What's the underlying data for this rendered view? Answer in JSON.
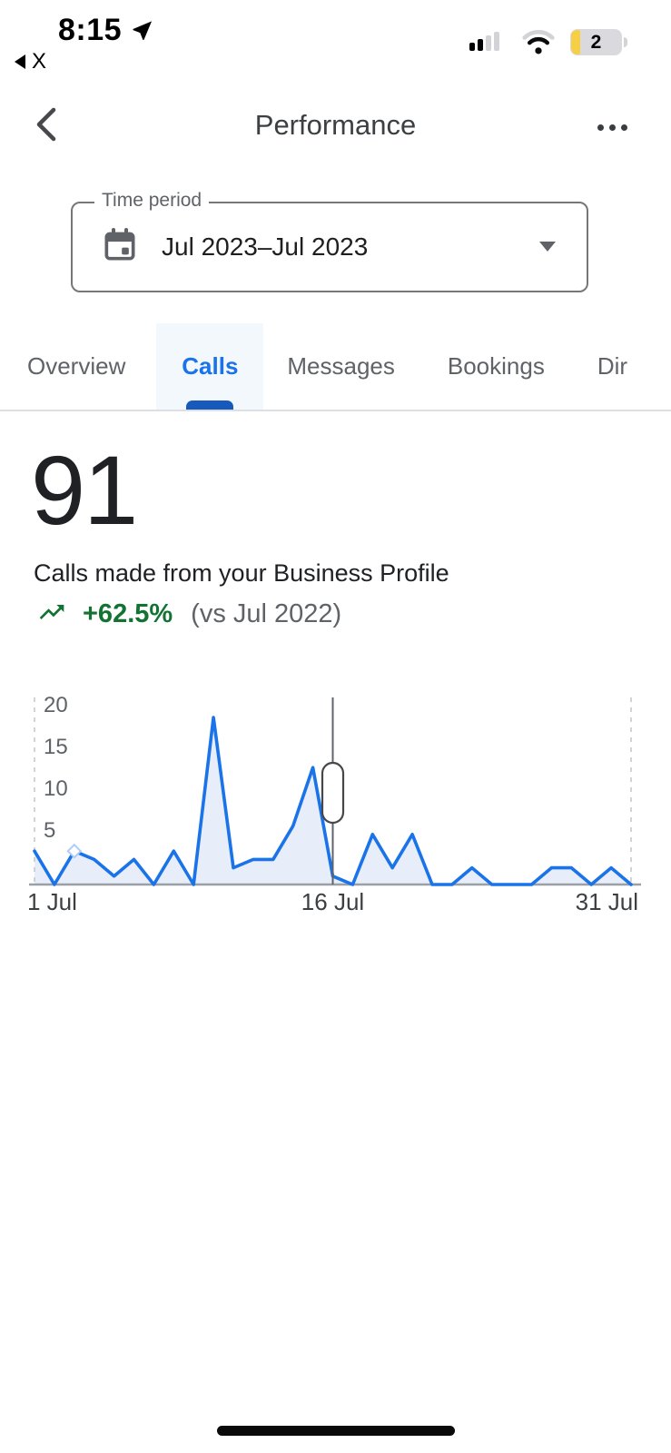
{
  "status_bar": {
    "time": "8:15",
    "previous_app": "X",
    "battery_percent": "2"
  },
  "header": {
    "title": "Performance"
  },
  "time_period": {
    "label": "Time period",
    "value": "Jul 2023–Jul 2023"
  },
  "tabs": [
    {
      "label": "Overview",
      "active": false
    },
    {
      "label": "Calls",
      "active": true
    },
    {
      "label": "Messages",
      "active": false
    },
    {
      "label": "Bookings",
      "active": false
    },
    {
      "label": "Dir",
      "active": false
    }
  ],
  "metric": {
    "value": "91",
    "description": "Calls made from your Business Profile",
    "delta": "+62.5%",
    "comparison": "(vs Jul 2022)"
  },
  "chart_data": {
    "type": "area",
    "title": "",
    "categories": [
      1,
      2,
      3,
      4,
      5,
      6,
      7,
      8,
      9,
      10,
      11,
      12,
      13,
      14,
      15,
      16,
      17,
      18,
      19,
      20,
      21,
      22,
      23,
      24,
      25,
      26,
      27,
      28,
      29,
      30,
      31
    ],
    "series": [
      {
        "name": "Calls",
        "values": [
          4,
          0,
          4,
          3,
          1,
          3,
          0,
          4,
          0,
          20,
          2,
          3,
          3,
          7,
          14,
          1,
          0,
          6,
          2,
          6,
          0,
          0,
          2,
          0,
          0,
          0,
          2,
          2,
          0,
          2,
          0
        ]
      }
    ],
    "total": 91,
    "ylim": [
      0,
      21
    ],
    "y_ticks": [
      5,
      10,
      15,
      20
    ],
    "x_tick_labels": [
      "1 Jul",
      "16 Jul",
      "31 Jul"
    ],
    "x_tick_indices": [
      0,
      15,
      30
    ],
    "cursor": {
      "index": 15,
      "label": "16 Jul"
    },
    "highlight_index": 2,
    "grid": "edge-dashed-only",
    "legend": "none",
    "colors": {
      "line": "#1a73e8",
      "area": "#e7eefa",
      "axis": "#9aa0a6",
      "grid_dashed": "#c6c9cd",
      "tick_text": "#5f6368",
      "x_label_text": "#3c4043",
      "cursor": "#5f6368",
      "cursor_handle_stroke": "#45474a",
      "highlight_stroke": "#aecbfa"
    }
  },
  "colors": {
    "accent_blue": "#1a73e8",
    "tab_underline": "#185abc",
    "tab_active_bg": "#f3f8fd",
    "positive_green": "#137333",
    "text_primary": "#202124",
    "text_secondary": "#5f6368",
    "divider": "#dde0e3",
    "battery_yellow": "#f7cf45"
  }
}
